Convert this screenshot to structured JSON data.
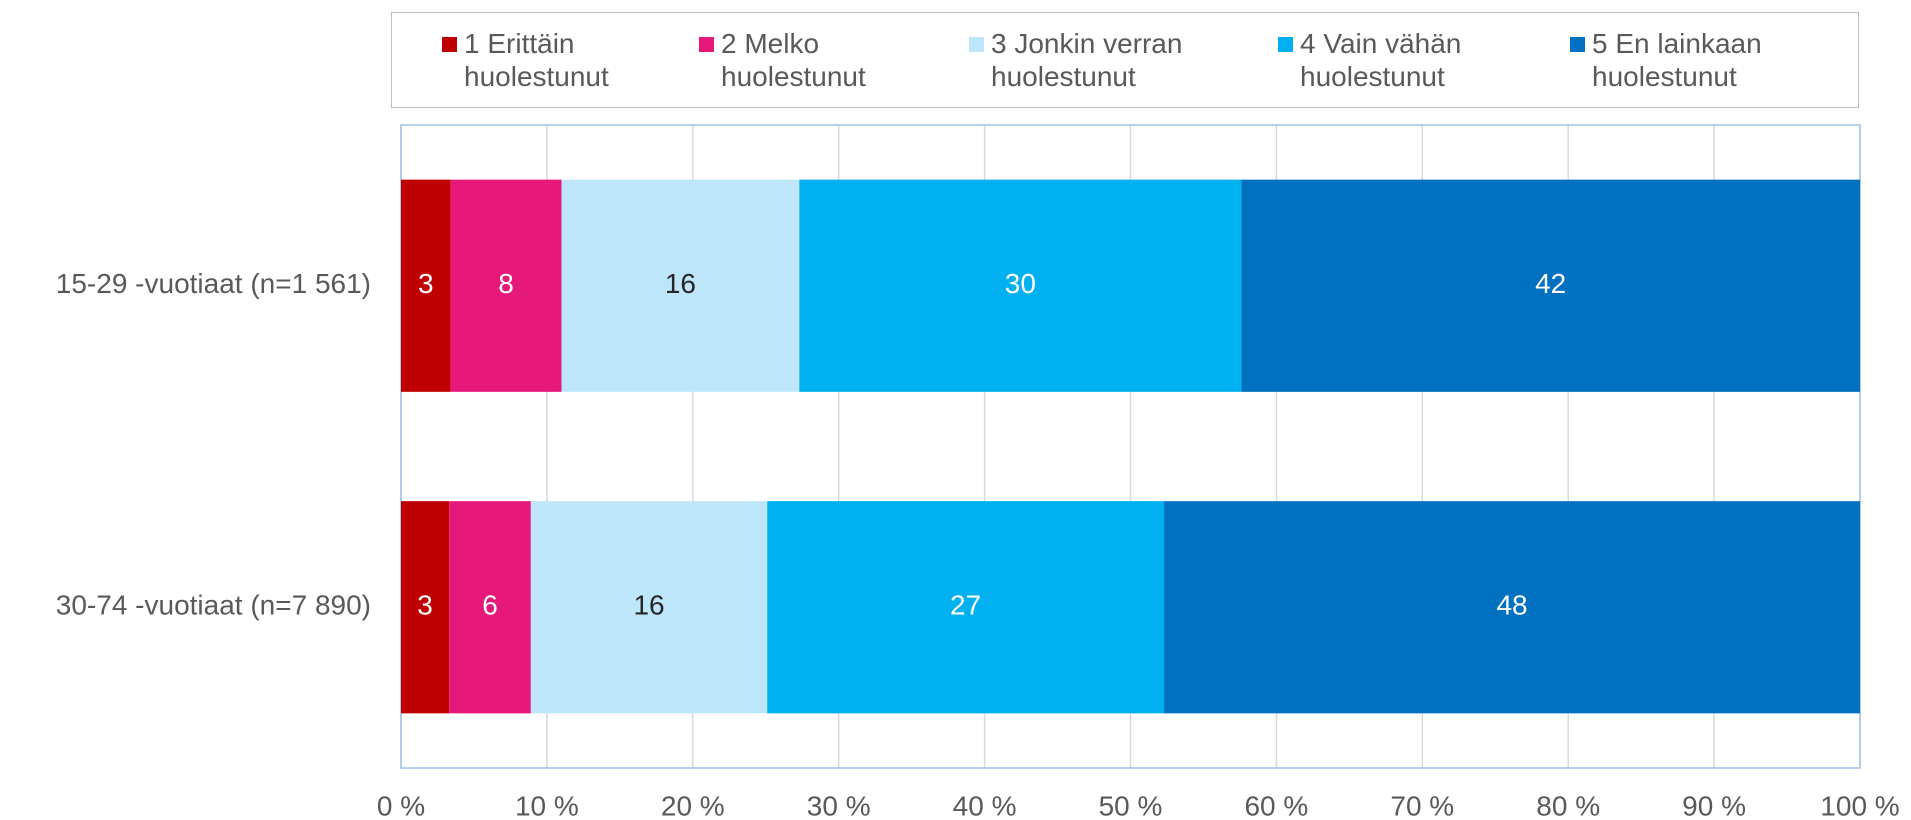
{
  "chart_data": {
    "type": "stacked_bar_horizontal",
    "categories": [
      "15-29 -vuotiaat (n=1 561)",
      "30-74 -vuotiaat (n=7 890)"
    ],
    "series": [
      {
        "name": "1 Erittäin huolestunut",
        "color": "#c00000",
        "values": [
          3.4,
          3.3
        ],
        "value_labels": [
          "3",
          "3"
        ]
      },
      {
        "name": "2 Melko huolestunut",
        "color": "#e6197a",
        "values": [
          7.6,
          5.6
        ],
        "value_labels": [
          "8",
          "6"
        ]
      },
      {
        "name": "3 Jonkin verran huolestunut",
        "color": "#bde6fb",
        "values": [
          16.3,
          16.2
        ],
        "value_labels": [
          "16",
          "16"
        ]
      },
      {
        "name": "4 Vain vähän huolestunut",
        "color": "#00b0f0",
        "values": [
          30.3,
          27.2
        ],
        "value_labels": [
          "30",
          "27"
        ]
      },
      {
        "name": "5 En lainkaan huolestunut",
        "color": "#0070c0",
        "values": [
          42.4,
          47.7
        ],
        "value_labels": [
          "42",
          "48"
        ]
      }
    ],
    "xlim": [
      0,
      100
    ],
    "xticks": [
      {
        "value": 0,
        "label": "0 %"
      },
      {
        "value": 10,
        "label": "10 %"
      },
      {
        "value": 20,
        "label": "20 %"
      },
      {
        "value": 30,
        "label": "30 %"
      },
      {
        "value": 40,
        "label": "40 %"
      },
      {
        "value": 50,
        "label": "50 %"
      },
      {
        "value": 60,
        "label": "60 %"
      },
      {
        "value": 70,
        "label": "70 %"
      },
      {
        "value": 80,
        "label": "80 %"
      },
      {
        "value": 90,
        "label": "90 %"
      },
      {
        "value": 100,
        "label": "100 %"
      }
    ],
    "grid": true,
    "legend": "top"
  }
}
